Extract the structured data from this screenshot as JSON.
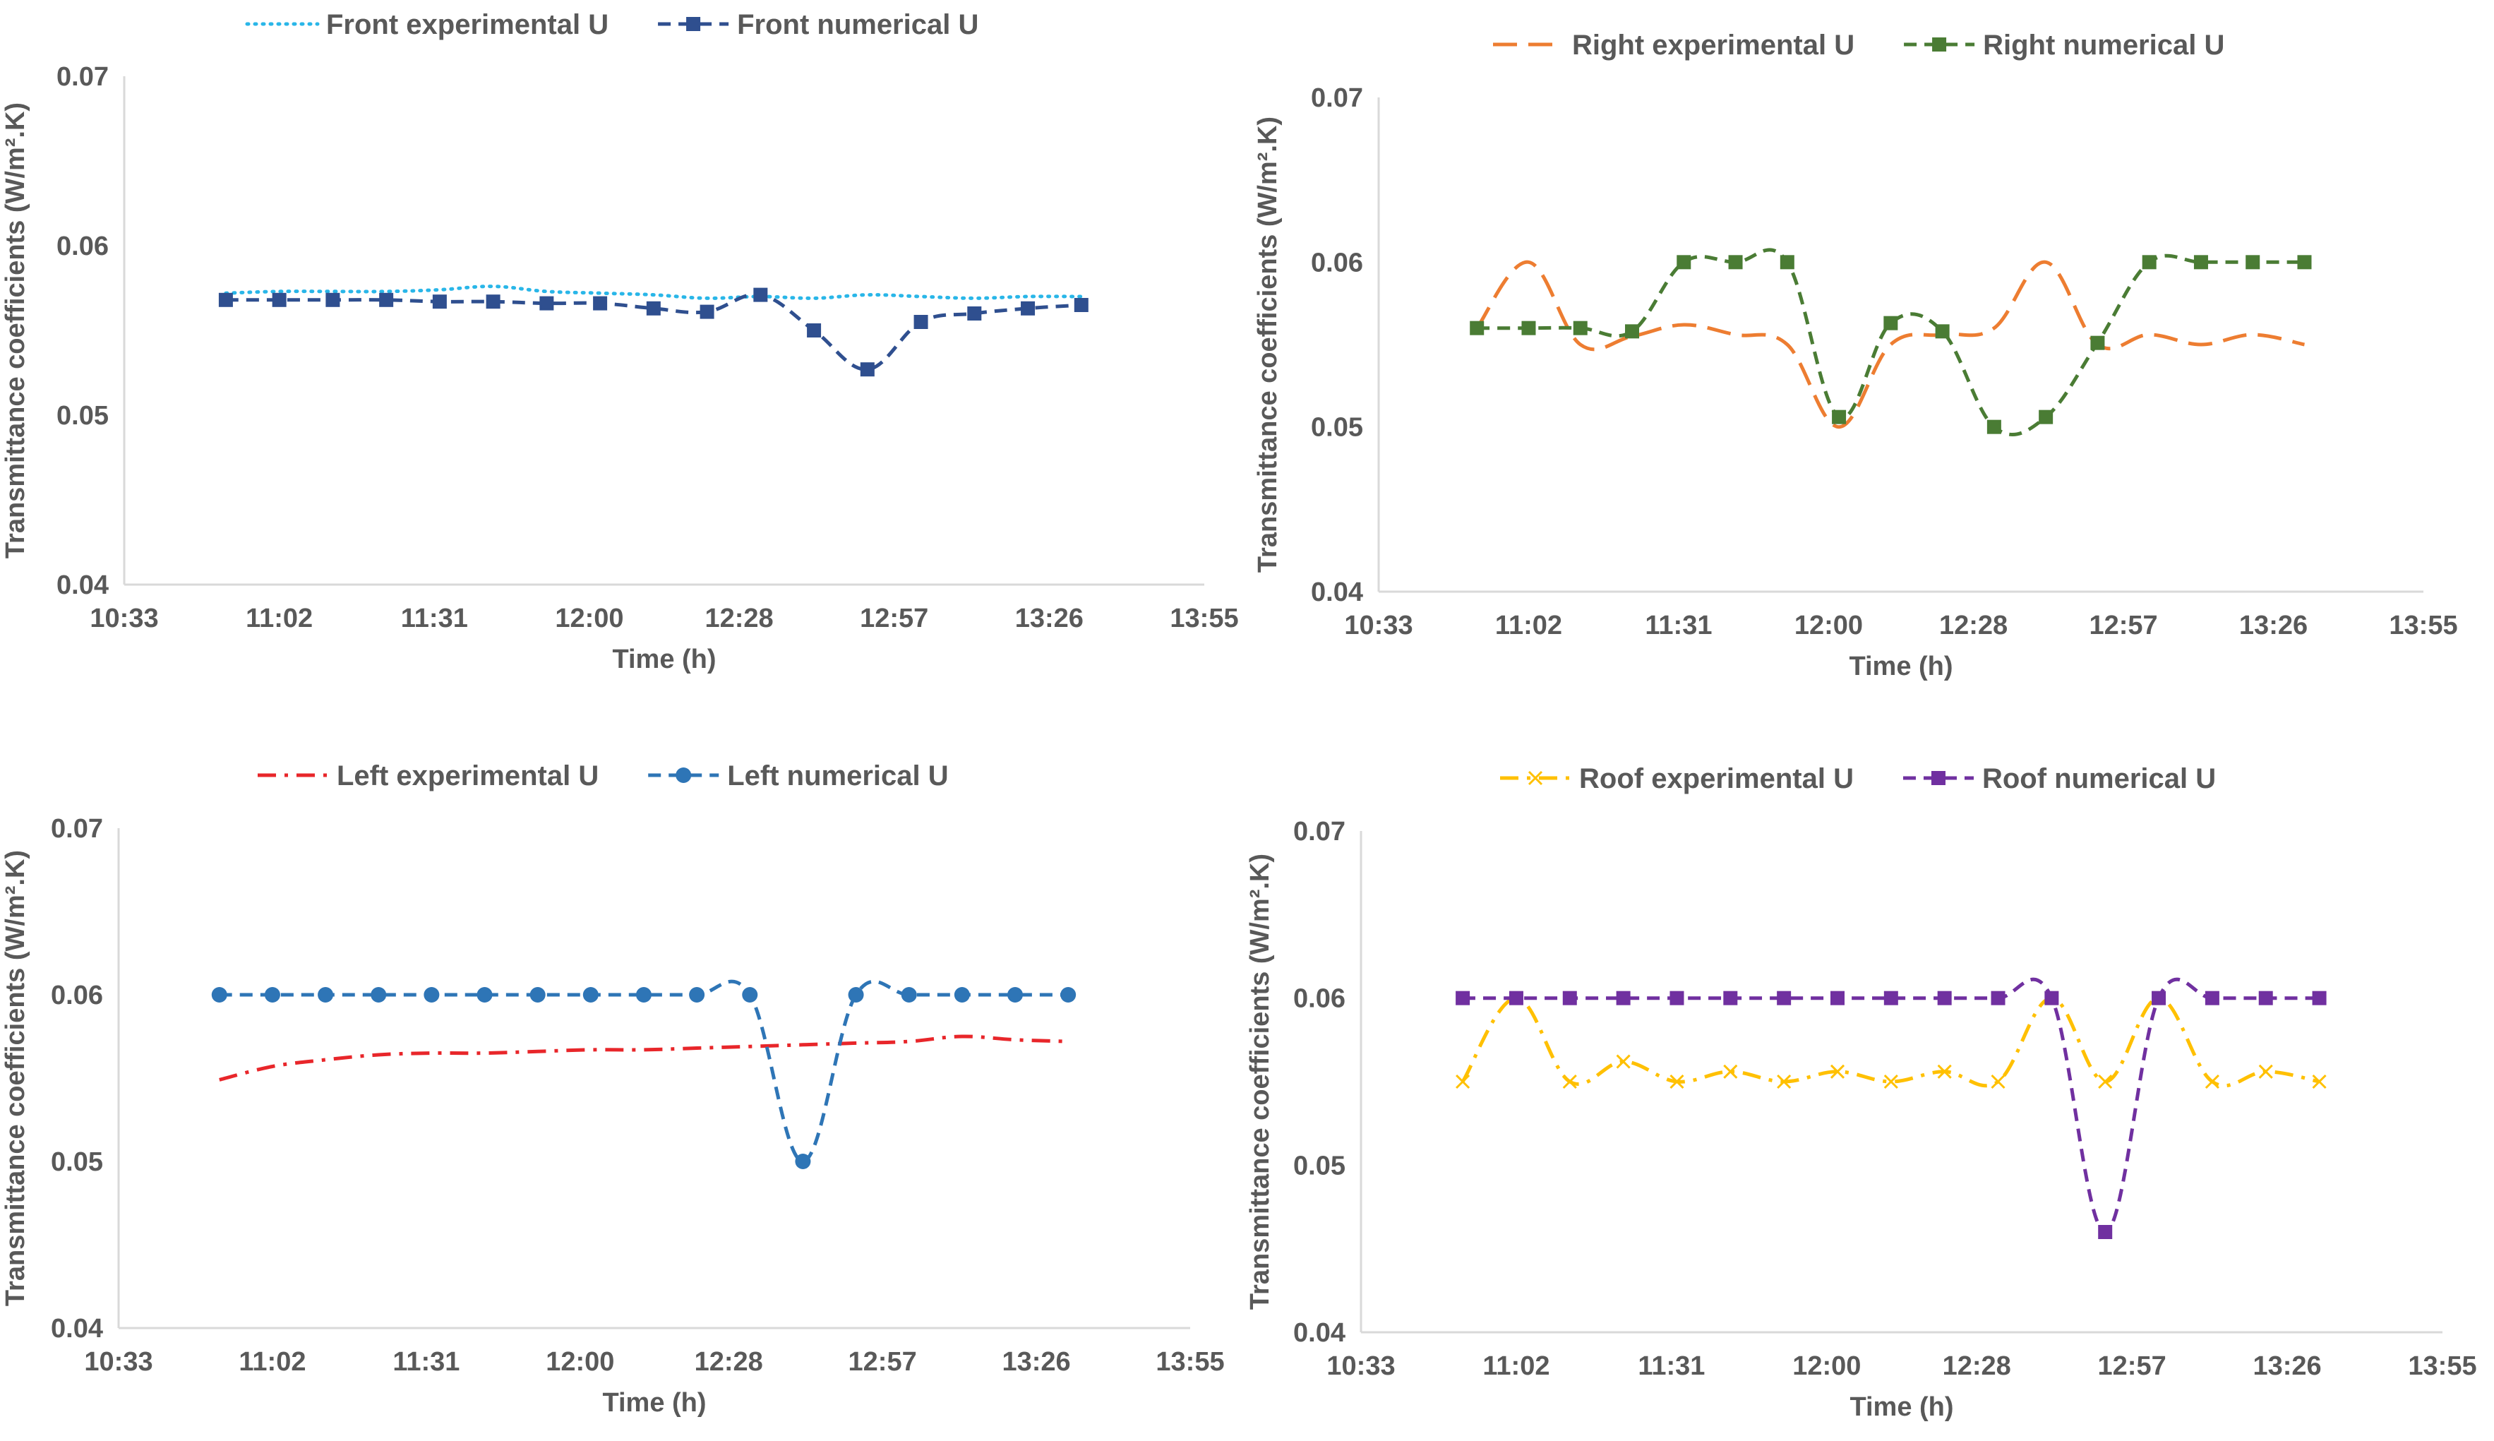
{
  "chart_data": [
    {
      "type": "line",
      "panel": "top-left",
      "xlabel": "Time (h)",
      "ylabel": "Transmittance coefficients (W/m².K)",
      "x_ticks": [
        "10:33",
        "11:02",
        "11:31",
        "12:00",
        "12:28",
        "12:57",
        "13:26",
        "13:55"
      ],
      "y_ticks": [
        "0.04",
        "0.05",
        "0.06",
        "0.07"
      ],
      "ylim": [
        0.04,
        0.07
      ],
      "legend_position": "top",
      "x": [
        "10:52",
        "11:02",
        "11:12",
        "11:22",
        "11:32",
        "11:42",
        "11:52",
        "12:02",
        "12:12",
        "12:22",
        "12:32",
        "12:42",
        "12:52",
        "13:02",
        "13:12",
        "13:22",
        "13:32"
      ],
      "series": [
        {
          "name": "Front experimental U",
          "color": "#29b6e8",
          "dash": "dotted",
          "marker": "none",
          "values": [
            0.0572,
            0.0573,
            0.0573,
            0.0573,
            0.0574,
            0.0576,
            0.0573,
            0.0572,
            0.0571,
            0.0569,
            0.057,
            0.0569,
            0.0571,
            0.057,
            0.0569,
            0.057,
            0.057
          ]
        },
        {
          "name": "Front numerical U",
          "color": "#2f4f8f",
          "dash": "dashed",
          "marker": "square",
          "values": [
            0.0568,
            0.0568,
            0.0568,
            0.0568,
            0.0567,
            0.0567,
            0.0566,
            0.0566,
            0.0563,
            0.0561,
            0.0571,
            0.055,
            0.0527,
            0.0555,
            0.056,
            0.0563,
            0.0565
          ]
        }
      ]
    },
    {
      "type": "line",
      "panel": "top-right",
      "xlabel": "Time (h)",
      "ylabel": "Transmittance coefficients (W/m².K)",
      "x_ticks": [
        "10:33",
        "11:02",
        "11:31",
        "12:00",
        "12:28",
        "12:57",
        "13:26",
        "13:55"
      ],
      "y_ticks": [
        "0.04",
        "0.05",
        "0.06",
        "0.07"
      ],
      "ylim": [
        0.04,
        0.07
      ],
      "legend_position": "top",
      "x": [
        "10:52",
        "11:02",
        "11:12",
        "11:22",
        "11:32",
        "11:42",
        "11:52",
        "12:02",
        "12:12",
        "12:22",
        "12:32",
        "12:42",
        "12:52",
        "13:02",
        "13:12",
        "13:22",
        "13:32"
      ],
      "series": [
        {
          "name": "Right experimental U",
          "color": "#ed7d31",
          "dash": "long-dash",
          "marker": "none",
          "values": [
            0.056,
            0.06,
            0.055,
            0.0555,
            0.0562,
            0.0556,
            0.055,
            0.05,
            0.055,
            0.0556,
            0.056,
            0.06,
            0.055,
            0.0556,
            0.055,
            0.0556,
            0.055
          ]
        },
        {
          "name": "Right numerical U",
          "color": "#4a7c34",
          "dash": "dashed",
          "marker": "square",
          "values": [
            0.056,
            0.056,
            0.056,
            0.0558,
            0.06,
            0.06,
            0.06,
            0.0506,
            0.0563,
            0.0558,
            0.05,
            0.0506,
            0.0551,
            0.06,
            0.06,
            0.06,
            0.06
          ]
        }
      ]
    },
    {
      "type": "line",
      "panel": "bottom-left",
      "xlabel": "Time (h)",
      "ylabel": "Transmittance coefficients (W/m².K)",
      "x_ticks": [
        "10:33",
        "11:02",
        "11:31",
        "12:00",
        "12:28",
        "12:57",
        "13:26",
        "13:55"
      ],
      "y_ticks": [
        "0.04",
        "0.05",
        "0.06",
        "0.07"
      ],
      "ylim": [
        0.04,
        0.07
      ],
      "legend_position": "top",
      "x": [
        "10:52",
        "11:02",
        "11:12",
        "11:22",
        "11:32",
        "11:42",
        "11:52",
        "12:02",
        "12:12",
        "12:22",
        "12:32",
        "12:42",
        "12:52",
        "13:02",
        "13:12",
        "13:22",
        "13:32"
      ],
      "series": [
        {
          "name": "Left experimental U",
          "color": "#e8262a",
          "dash": "dash-dot",
          "marker": "none",
          "values": [
            0.0549,
            0.0557,
            0.0561,
            0.0564,
            0.0565,
            0.0565,
            0.0566,
            0.0567,
            0.0567,
            0.0568,
            0.0569,
            0.057,
            0.0571,
            0.0572,
            0.0575,
            0.0573,
            0.0572
          ]
        },
        {
          "name": "Left numerical U",
          "color": "#2e75b6",
          "dash": "dashed",
          "marker": "circle",
          "values": [
            0.06,
            0.06,
            0.06,
            0.06,
            0.06,
            0.06,
            0.06,
            0.06,
            0.06,
            0.06,
            0.06,
            0.05,
            0.06,
            0.06,
            0.06,
            0.06,
            0.06
          ]
        }
      ]
    },
    {
      "type": "line",
      "panel": "bottom-right",
      "xlabel": "Time (h)",
      "ylabel": "Transmittance coefficients (W/m².K)",
      "x_ticks": [
        "10:33",
        "11:02",
        "11:31",
        "12:00",
        "12:28",
        "12:57",
        "13:26",
        "13:55"
      ],
      "y_ticks": [
        "0.04",
        "0.05",
        "0.06",
        "0.07"
      ],
      "ylim": [
        0.04,
        0.07
      ],
      "legend_position": "top",
      "x": [
        "10:52",
        "11:02",
        "11:12",
        "11:22",
        "11:32",
        "11:42",
        "11:52",
        "12:02",
        "12:12",
        "12:22",
        "12:32",
        "12:42",
        "12:52",
        "13:02",
        "13:12",
        "13:22",
        "13:32"
      ],
      "series": [
        {
          "name": "Roof experimental U",
          "color": "#ffc000",
          "dash": "dash-dot",
          "marker": "x",
          "values": [
            0.055,
            0.06,
            0.055,
            0.0562,
            0.055,
            0.0556,
            0.055,
            0.0556,
            0.055,
            0.0556,
            0.055,
            0.06,
            0.055,
            0.06,
            0.055,
            0.0556,
            0.055
          ]
        },
        {
          "name": "Roof numerical U",
          "color": "#7030a0",
          "dash": "dashed",
          "marker": "square",
          "values": [
            0.06,
            0.06,
            0.06,
            0.06,
            0.06,
            0.06,
            0.06,
            0.06,
            0.06,
            0.06,
            0.06,
            0.06,
            0.046,
            0.06,
            0.06,
            0.06,
            0.06
          ]
        }
      ]
    }
  ]
}
